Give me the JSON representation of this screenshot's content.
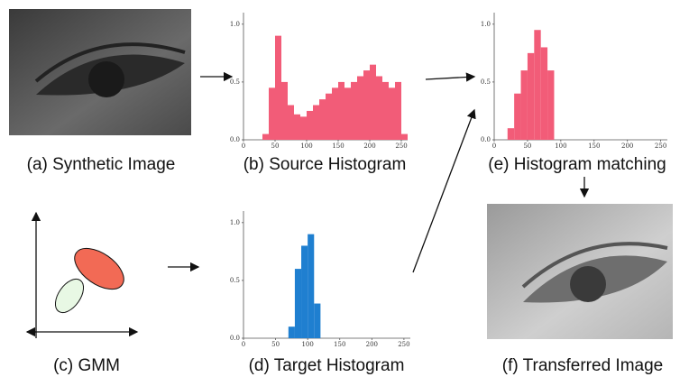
{
  "images": [
    {
      "caption": "(a) Synthetic Image"
    },
    {
      "caption": "(f) Transferred Image"
    }
  ],
  "gmm": {
    "caption": "(c) GMM"
  },
  "histograms": [
    {
      "type": "histogram",
      "caption": "(b) Source Histogram",
      "color": "#f25c78",
      "bins": [
        0,
        10,
        20,
        30,
        40,
        50,
        60,
        70,
        80,
        90,
        100,
        110,
        120,
        130,
        140,
        150,
        160,
        170,
        180,
        190,
        200,
        210,
        220,
        230,
        240,
        250,
        260
      ],
      "values": [
        0,
        0,
        0,
        0.05,
        0.45,
        0.9,
        0.5,
        0.3,
        0.22,
        0.2,
        0.25,
        0.3,
        0.35,
        0.4,
        0.45,
        0.5,
        0.45,
        0.5,
        0.55,
        0.6,
        0.65,
        0.55,
        0.5,
        0.45,
        0.5,
        0.05
      ],
      "xlim": [
        0,
        260
      ],
      "ylim": [
        0,
        1.1
      ],
      "xticks": [
        0,
        50,
        100,
        150,
        200,
        250
      ],
      "yticks": [
        {
          "value": 0,
          "label": "0.0"
        },
        {
          "value": 0.5,
          "label": "0.5"
        },
        {
          "value": 1,
          "label": "1.0"
        }
      ]
    },
    {
      "type": "histogram",
      "caption": "(e) Histogram matching",
      "color": "#f25c78",
      "bins": [
        0,
        10,
        20,
        30,
        40,
        50,
        60,
        70,
        80,
        90,
        100,
        110,
        120,
        130,
        140,
        150,
        160,
        170,
        180,
        190,
        200,
        210,
        220,
        230,
        240,
        250,
        260
      ],
      "values": [
        0,
        0,
        0.1,
        0.4,
        0.6,
        0.75,
        0.95,
        0.8,
        0.6,
        0,
        0,
        0,
        0,
        0,
        0,
        0,
        0,
        0,
        0,
        0,
        0,
        0,
        0,
        0,
        0,
        0
      ],
      "xlim": [
        0,
        260
      ],
      "ylim": [
        0,
        1.1
      ],
      "xticks": [
        0,
        50,
        100,
        150,
        200,
        250
      ],
      "yticks": [
        {
          "value": 0,
          "label": "0.0"
        },
        {
          "value": 0.5,
          "label": "0.5"
        },
        {
          "value": 1,
          "label": "1.0"
        }
      ]
    },
    {
      "type": "histogram",
      "caption": "(d) Target Histogram",
      "color": "#1f7fd0",
      "bins": [
        0,
        10,
        20,
        30,
        40,
        50,
        60,
        70,
        80,
        90,
        100,
        110,
        120,
        130,
        140,
        150,
        160,
        170,
        180,
        190,
        200,
        210,
        220,
        230,
        240,
        250,
        260
      ],
      "values": [
        0,
        0,
        0,
        0,
        0,
        0,
        0,
        0.1,
        0.6,
        0.8,
        0.9,
        0.3,
        0,
        0,
        0,
        0,
        0,
        0,
        0,
        0,
        0,
        0,
        0,
        0,
        0,
        0
      ],
      "xlim": [
        0,
        260
      ],
      "ylim": [
        0,
        1.1
      ],
      "xticks": [
        0,
        50,
        100,
        150,
        200,
        250
      ],
      "yticks": [
        {
          "value": 0,
          "label": "0.0"
        },
        {
          "value": 0.5,
          "label": "0.5"
        },
        {
          "value": 1,
          "label": "1.0"
        }
      ]
    }
  ]
}
